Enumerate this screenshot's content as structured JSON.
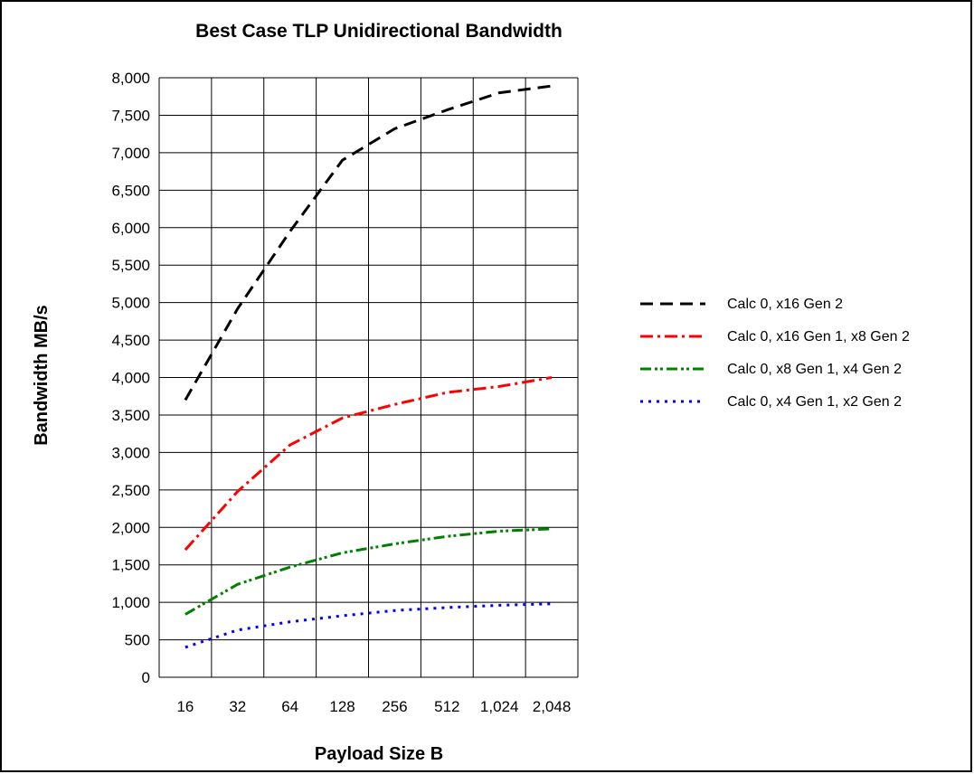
{
  "chart_data": {
    "type": "line",
    "title": "Best Case TLP Unidirectional Bandwidth",
    "xlabel": "Payload Size B",
    "ylabel": "Bandwidth MB/s",
    "categories": [
      "16",
      "32",
      "64",
      "128",
      "256",
      "512",
      "1,024",
      "2,048"
    ],
    "x_values": [
      16,
      32,
      64,
      128,
      256,
      512,
      1024,
      2048
    ],
    "y_ticks": [
      "0",
      "500",
      "1,000",
      "1,500",
      "2,000",
      "2,500",
      "3,000",
      "3,500",
      "4,000",
      "4,500",
      "5,000",
      "5,500",
      "6,000",
      "6,500",
      "7,000",
      "7,500",
      "8,000"
    ],
    "ylim": [
      0,
      8000
    ],
    "grid": true,
    "legend_position": "right",
    "series": [
      {
        "name": "Calc 0, x16 Gen 2",
        "color": "#000000",
        "dash": "dashed",
        "values": [
          3700,
          4920,
          5950,
          6900,
          7320,
          7570,
          7800,
          7890
        ]
      },
      {
        "name": "Calc 0, x16 Gen 1, x8 Gen 2",
        "color": "#ff0000",
        "dash": "dash-dot",
        "values": [
          1700,
          2480,
          3100,
          3460,
          3640,
          3800,
          3880,
          4000
        ]
      },
      {
        "name": "Calc 0, x8 Gen 1, x4 Gen 2",
        "color": "#008000",
        "dash": "dash-dot-dot",
        "values": [
          840,
          1240,
          1470,
          1660,
          1780,
          1880,
          1950,
          1980
        ]
      },
      {
        "name": "Calc 0, x4 Gen 1, x2 Gen 2",
        "color": "#0000ff",
        "dash": "dotted",
        "values": [
          400,
          630,
          740,
          820,
          890,
          930,
          960,
          980
        ]
      }
    ]
  }
}
